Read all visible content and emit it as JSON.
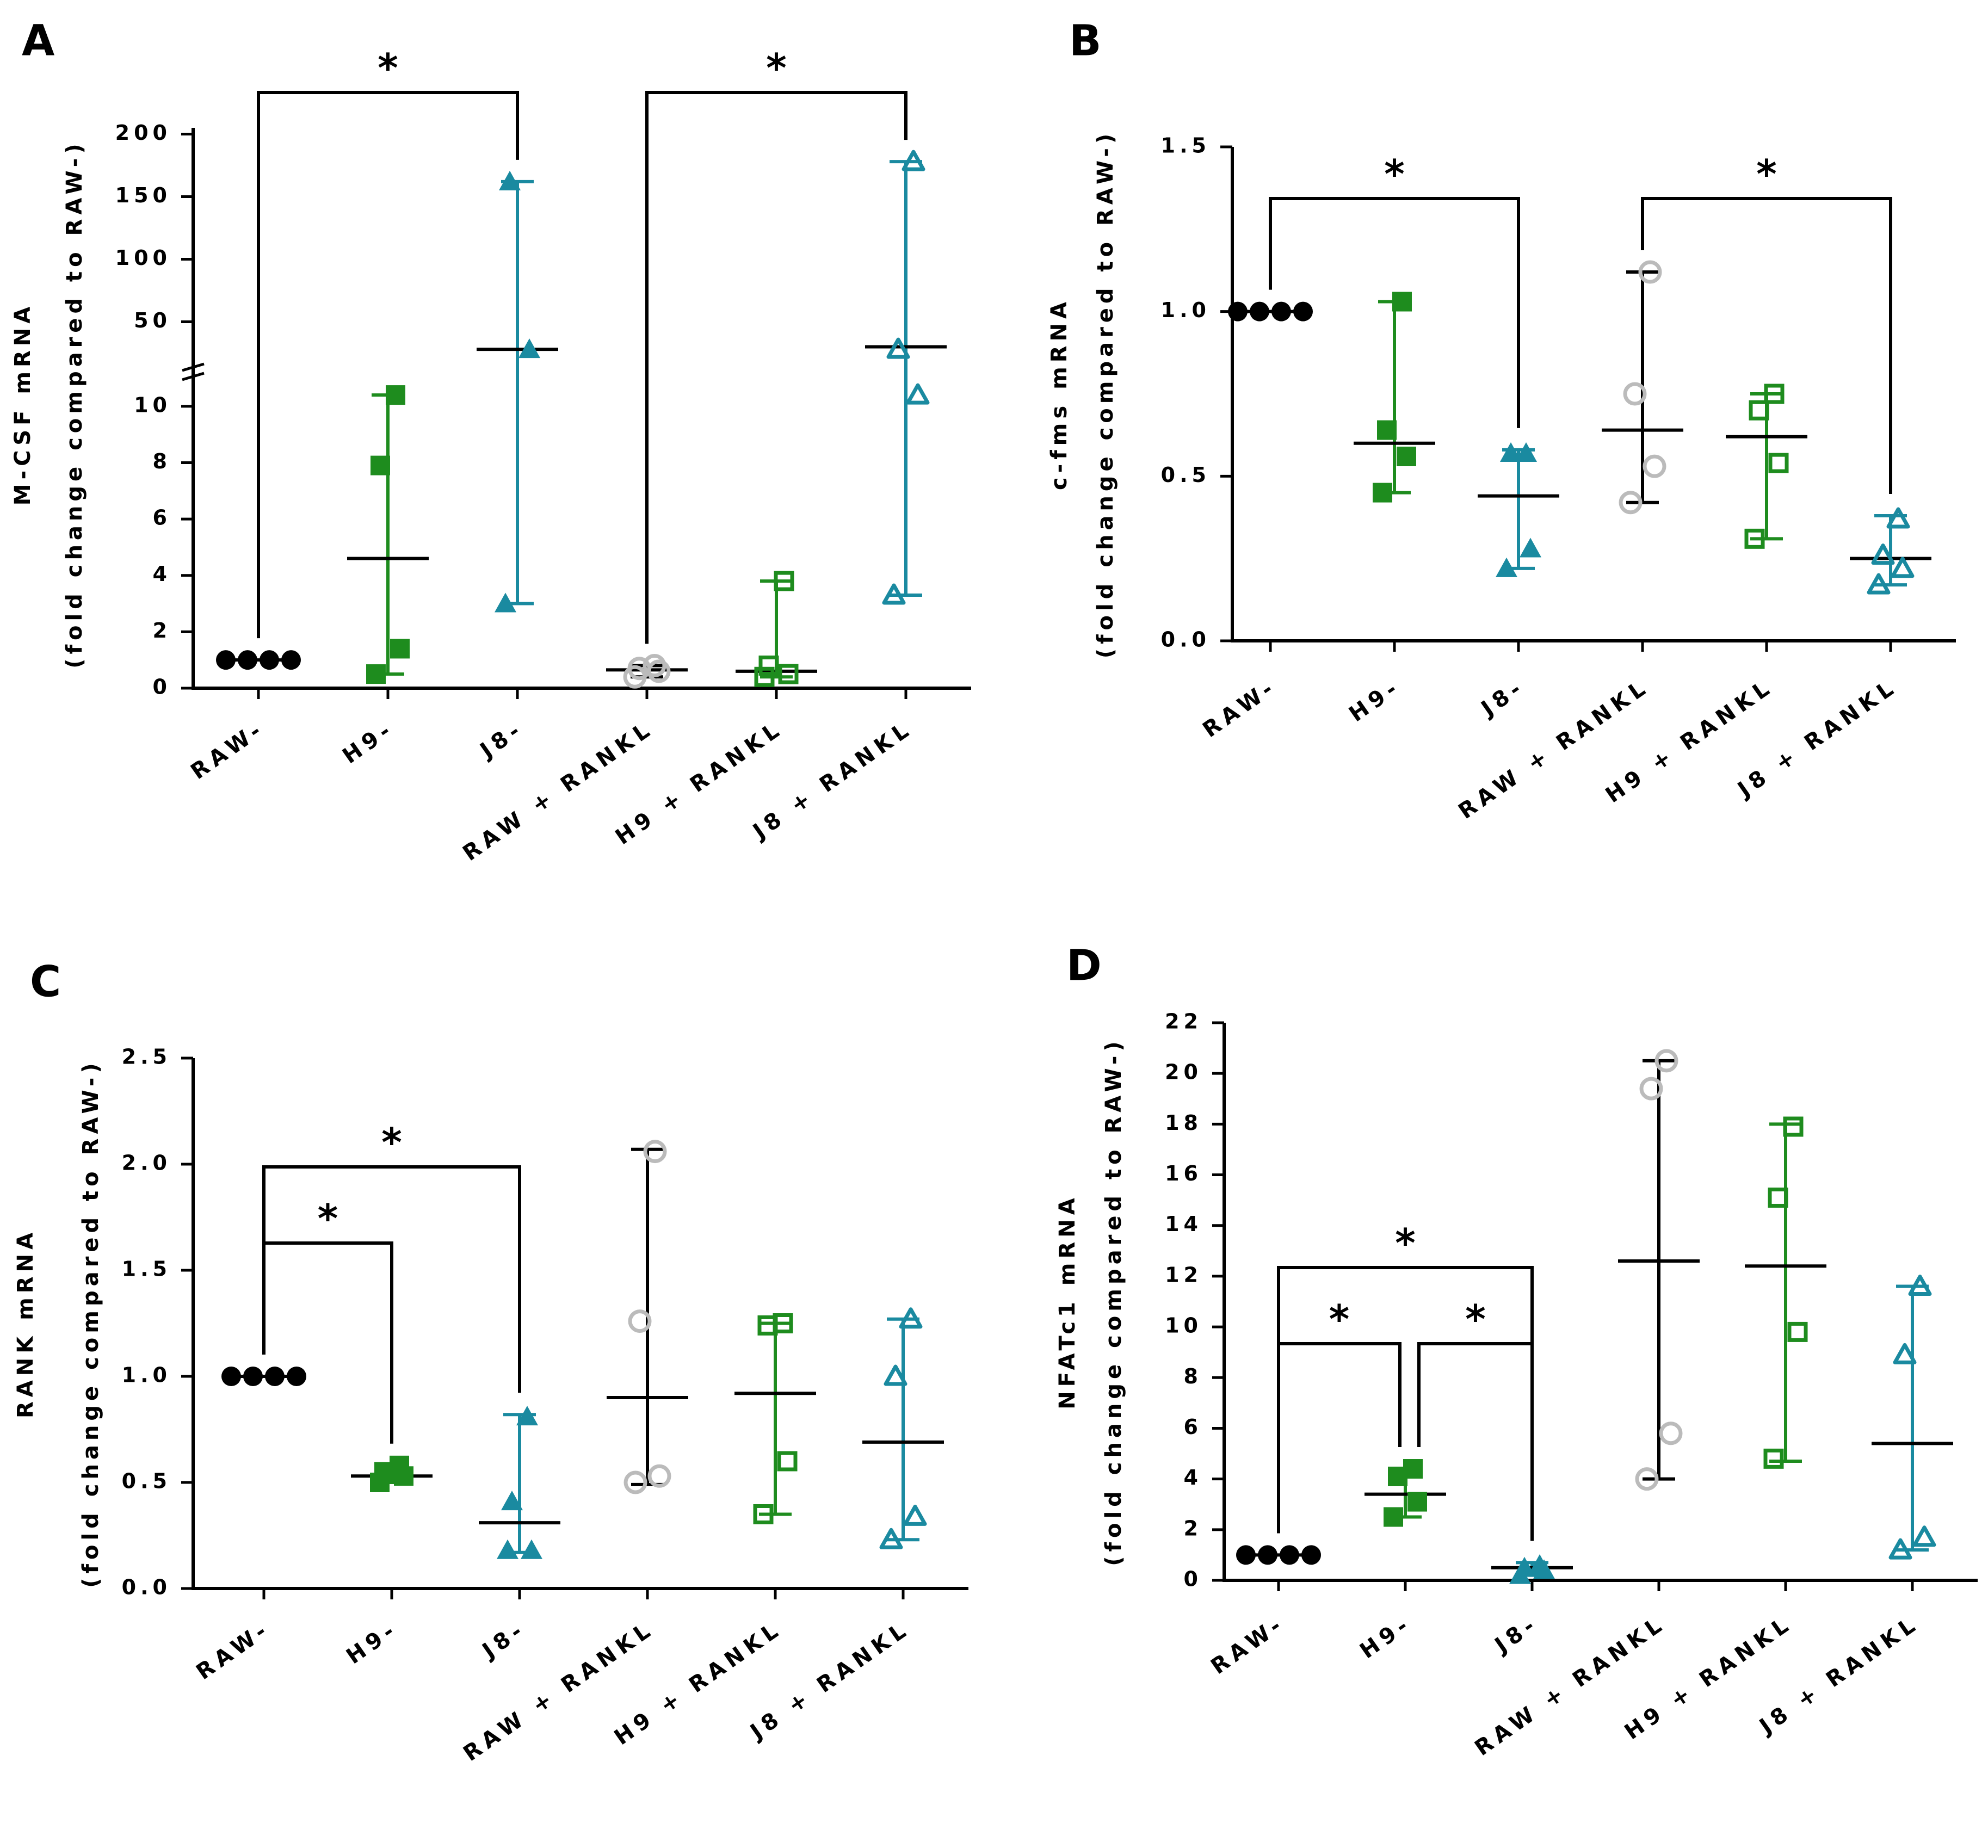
{
  "figure": {
    "title": "",
    "panel_count": 4
  },
  "colors": {
    "black": "#000000",
    "green": "#1e8c1e",
    "teal": "#1a8aa0",
    "gray": "#bbbbbb"
  },
  "chart_data": [
    {
      "panel": "A",
      "type": "scatter",
      "ylabel_line1": "M-CSF mRNA",
      "ylabel_line2": "(fold change compared to RAW-)",
      "categories": [
        "RAW-",
        "H9-",
        "J8-",
        "RAW + RANKL",
        "H9 + RANKL",
        "J8 + RANKL"
      ],
      "y_axis": {
        "broken": true,
        "lower_range": [
          0,
          11
        ],
        "lower_ticks": [
          "0",
          "2",
          "4",
          "6",
          "8",
          "10"
        ],
        "upper_range": [
          15,
          205
        ],
        "upper_ticks": [
          "50",
          "100",
          "150",
          "200"
        ]
      },
      "series": [
        {
          "name": "RAW-",
          "marker": "circle-filled",
          "color": "black",
          "points": [
            1,
            1,
            1,
            1
          ],
          "mean": 1,
          "range": [
            1,
            1
          ]
        },
        {
          "name": "H9-",
          "marker": "square-filled",
          "color": "green",
          "points": [
            0.5,
            1.4,
            7.9,
            10.4
          ],
          "mean": 4.6,
          "range": [
            0.5,
            10.4
          ]
        },
        {
          "name": "J8-",
          "marker": "triangle-filled",
          "color": "teal",
          "points": [
            3.0,
            28,
            162
          ],
          "mean": 28,
          "range": [
            3.0,
            162
          ]
        },
        {
          "name": "RAW + RANKL",
          "marker": "circle-open",
          "color": "gray",
          "points": [
            0.4,
            0.6,
            0.7,
            0.8
          ],
          "mean": 0.65,
          "range": [
            0.4,
            0.8
          ]
        },
        {
          "name": "H9 + RANKL",
          "marker": "square-open",
          "color": "green",
          "points": [
            0.4,
            0.5,
            0.8,
            3.8
          ],
          "mean": 0.6,
          "range": [
            0.4,
            3.8
          ]
        },
        {
          "name": "J8 + RANKL",
          "marker": "triangle-open",
          "color": "teal",
          "points": [
            3.3,
            10.4,
            28,
            178
          ],
          "mean": 30,
          "range": [
            3.3,
            178
          ]
        }
      ],
      "significance": [
        {
          "from": "RAW-",
          "to": "J8-",
          "label": "*"
        },
        {
          "from": "RAW + RANKL",
          "to": "J8 + RANKL",
          "label": "*"
        }
      ]
    },
    {
      "panel": "B",
      "type": "scatter",
      "ylabel_line1": "c-fms mRNA",
      "ylabel_line2": "(fold change compared to RAW-)",
      "categories": [
        "RAW-",
        "H9-",
        "J8-",
        "RAW + RANKL",
        "H9 + RANKL",
        "J8 + RANKL"
      ],
      "y_axis": {
        "range": [
          0,
          1.5
        ],
        "ticks": [
          "0.0",
          "0.5",
          "1.0",
          "1.5"
        ]
      },
      "series": [
        {
          "name": "RAW-",
          "marker": "circle-filled",
          "color": "black",
          "points": [
            1.0,
            1.0,
            1.0,
            1.0
          ],
          "mean": 1.0,
          "range": [
            1.0,
            1.0
          ]
        },
        {
          "name": "H9-",
          "marker": "square-filled",
          "color": "green",
          "points": [
            0.45,
            0.56,
            0.64,
            1.03
          ],
          "mean": 0.6,
          "range": [
            0.45,
            1.03
          ]
        },
        {
          "name": "J8-",
          "marker": "triangle-filled",
          "color": "teal",
          "points": [
            0.22,
            0.28,
            0.57,
            0.57
          ],
          "mean": 0.44,
          "range": [
            0.22,
            0.58
          ]
        },
        {
          "name": "RAW + RANKL",
          "marker": "circle-open",
          "color": "gray",
          "points": [
            0.42,
            0.53,
            0.75,
            1.12
          ],
          "mean": 0.64,
          "range": [
            0.42,
            1.12
          ]
        },
        {
          "name": "H9 + RANKL",
          "marker": "square-open",
          "color": "green",
          "points": [
            0.31,
            0.54,
            0.7,
            0.75
          ],
          "mean": 0.62,
          "range": [
            0.31,
            0.75
          ]
        },
        {
          "name": "J8 + RANKL",
          "marker": "triangle-open",
          "color": "teal",
          "points": [
            0.17,
            0.22,
            0.26,
            0.37
          ],
          "mean": 0.25,
          "range": [
            0.17,
            0.38
          ]
        }
      ],
      "significance": [
        {
          "from": "RAW-",
          "to": "J8-",
          "label": "*"
        },
        {
          "from": "RAW + RANKL",
          "to": "J8 + RANKL",
          "label": "*"
        }
      ]
    },
    {
      "panel": "C",
      "type": "scatter",
      "ylabel_line1": "RANK mRNA",
      "ylabel_line2": "(fold change compared to RAW-)",
      "categories": [
        "RAW-",
        "H9-",
        "J8-",
        "RAW + RANKL",
        "H9 + RANKL",
        "J8 + RANKL"
      ],
      "y_axis": {
        "range": [
          0,
          2.5
        ],
        "ticks": [
          "0.0",
          "0.5",
          "1.0",
          "1.5",
          "2.0",
          "2.5"
        ]
      },
      "series": [
        {
          "name": "RAW-",
          "marker": "circle-filled",
          "color": "black",
          "points": [
            1.0,
            1.0,
            1.0,
            1.0
          ],
          "mean": 1.0,
          "range": [
            1.0,
            1.0
          ]
        },
        {
          "name": "H9-",
          "marker": "square-filled",
          "color": "green",
          "points": [
            0.5,
            0.53,
            0.55,
            0.58
          ],
          "mean": 0.53,
          "range": [
            0.5,
            0.58
          ]
        },
        {
          "name": "J8-",
          "marker": "triangle-filled",
          "color": "teal",
          "points": [
            0.18,
            0.18,
            0.41,
            0.81
          ],
          "mean": 0.31,
          "range": [
            0.17,
            0.82
          ]
        },
        {
          "name": "RAW + RANKL",
          "marker": "circle-open",
          "color": "gray",
          "points": [
            0.5,
            0.53,
            1.26,
            2.06
          ],
          "mean": 0.9,
          "range": [
            0.49,
            2.07
          ]
        },
        {
          "name": "H9 + RANKL",
          "marker": "square-open",
          "color": "green",
          "points": [
            0.35,
            0.6,
            1.24,
            1.25
          ],
          "mean": 0.92,
          "range": [
            0.35,
            1.25
          ]
        },
        {
          "name": "J8 + RANKL",
          "marker": "triangle-open",
          "color": "teal",
          "points": [
            0.23,
            0.34,
            1.0,
            1.27
          ],
          "mean": 0.69,
          "range": [
            0.23,
            1.27
          ]
        }
      ],
      "significance": [
        {
          "from": "RAW-",
          "to": "H9-",
          "label": "*"
        },
        {
          "from": "RAW-",
          "to": "J8-",
          "label": "*"
        }
      ]
    },
    {
      "panel": "D",
      "type": "scatter",
      "ylabel_line1": "NFATc1 mRNA",
      "ylabel_line2": "(fold change compared to RAW-)",
      "categories": [
        "RAW-",
        "H9-",
        "J8-",
        "RAW + RANKL",
        "H9 + RANKL",
        "J8 + RANKL"
      ],
      "y_axis": {
        "range": [
          0,
          22
        ],
        "ticks": [
          "0",
          "2",
          "4",
          "6",
          "8",
          "10",
          "12",
          "14",
          "16",
          "18",
          "20",
          "22"
        ]
      },
      "series": [
        {
          "name": "RAW-",
          "marker": "circle-filled",
          "color": "black",
          "points": [
            1,
            1,
            1,
            1
          ],
          "mean": 1,
          "range": [
            1,
            1
          ]
        },
        {
          "name": "H9-",
          "marker": "square-filled",
          "color": "green",
          "points": [
            2.5,
            3.1,
            4.1,
            4.4
          ],
          "mean": 3.4,
          "range": [
            2.5,
            4.4
          ]
        },
        {
          "name": "J8-",
          "marker": "triangle-filled",
          "color": "teal",
          "points": [
            0.2,
            0.4,
            0.5,
            0.6
          ],
          "mean": 0.5,
          "range": [
            0.2,
            0.7
          ]
        },
        {
          "name": "RAW + RANKL",
          "marker": "circle-open",
          "color": "gray",
          "points": [
            4.0,
            5.8,
            19.4,
            20.5
          ],
          "mean": 12.6,
          "range": [
            4.0,
            20.5
          ]
        },
        {
          "name": "H9 + RANKL",
          "marker": "square-open",
          "color": "green",
          "points": [
            4.8,
            9.8,
            15.1,
            17.9
          ],
          "mean": 12.4,
          "range": [
            4.7,
            18.0
          ]
        },
        {
          "name": "J8 + RANKL",
          "marker": "triangle-open",
          "color": "teal",
          "points": [
            1.2,
            1.7,
            8.9,
            11.6
          ],
          "mean": 5.4,
          "range": [
            1.2,
            11.6
          ]
        }
      ],
      "significance": [
        {
          "from": "RAW-",
          "to": "J8-",
          "label": "*"
        },
        {
          "from": "RAW-",
          "to": "H9-",
          "label": "*"
        },
        {
          "from": "H9-",
          "to": "J8-",
          "label": "*"
        }
      ]
    }
  ]
}
